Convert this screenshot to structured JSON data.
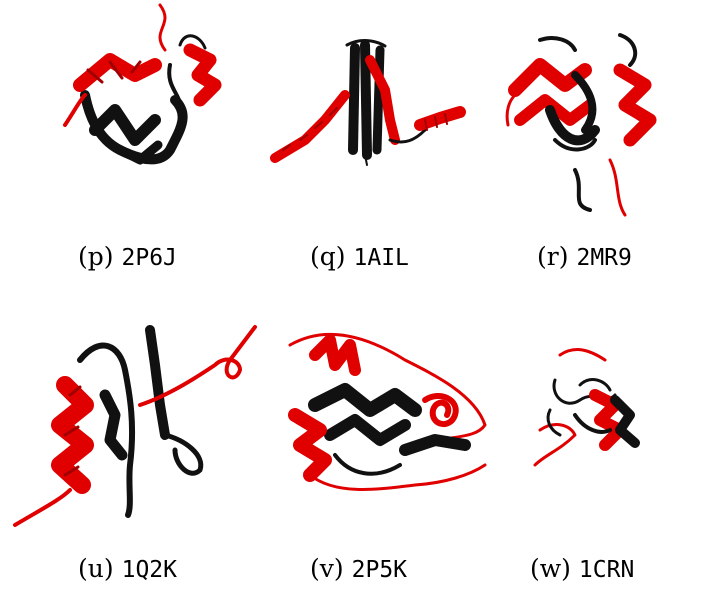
{
  "figure": {
    "panels": [
      {
        "label": "(p)",
        "id": "2P6J"
      },
      {
        "label": "(q)",
        "id": "1AIL"
      },
      {
        "label": "(r)",
        "id": "2MR9"
      },
      {
        "label": "(u)",
        "id": "1Q2K"
      },
      {
        "label": "(v)",
        "id": "2P5K"
      },
      {
        "label": "(w)",
        "id": "1CRN"
      }
    ],
    "colors": {
      "primary_structure": "#111111",
      "highlight": "#e00000",
      "background": "#ffffff"
    }
  }
}
